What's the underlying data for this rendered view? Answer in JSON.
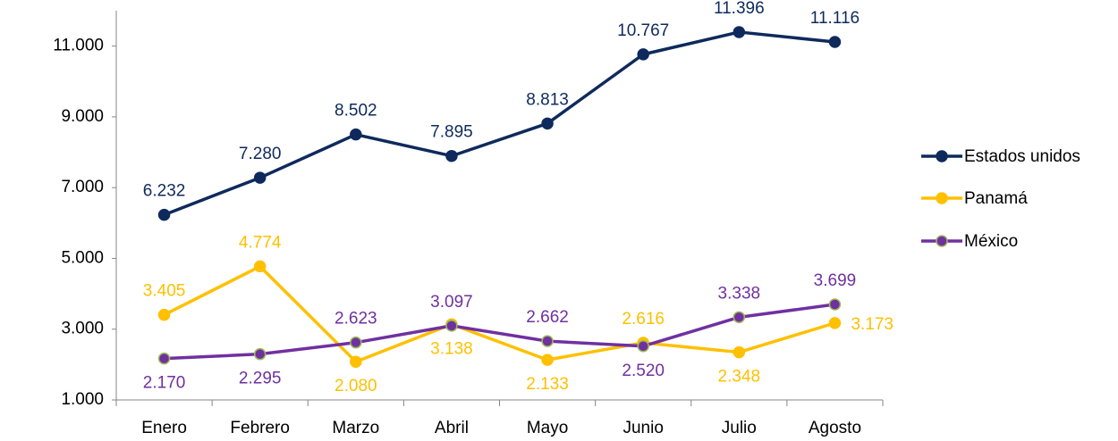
{
  "chart_data": {
    "type": "line",
    "categories": [
      "Enero",
      "Febrero",
      "Marzo",
      "Abril",
      "Mayo",
      "Junio",
      "Julio",
      "Agosto"
    ],
    "series": [
      {
        "name": "Estados unidos",
        "color": "#0e2a5c",
        "marker_fill": "#0e2a5c",
        "marker_stroke": "#0e2a5c",
        "values": [
          6232,
          7280,
          8502,
          7895,
          8813,
          10767,
          11396,
          11116
        ],
        "value_labels": [
          "6.232",
          "7.280",
          "8.502",
          "7.895",
          "8.813",
          "10.767",
          "11.396",
          "11.116"
        ]
      },
      {
        "name": "Panamá",
        "color": "#ffc000",
        "marker_fill": "#ffc000",
        "marker_stroke": "#ffc000",
        "values": [
          3405,
          4774,
          2080,
          3138,
          2133,
          2616,
          2348,
          3173
        ],
        "value_labels": [
          "3.405",
          "4.774",
          "2.080",
          "3.138",
          "2.133",
          "2.616",
          "2.348",
          "3.173"
        ]
      },
      {
        "name": "México",
        "color": "#7030a0",
        "marker_fill": "#7030a0",
        "marker_stroke": "#9bbb59",
        "values": [
          2170,
          2295,
          2623,
          3097,
          2662,
          2520,
          3338,
          3699
        ],
        "value_labels": [
          "2.170",
          "2.295",
          "2.623",
          "3.097",
          "2.662",
          "2.520",
          "3.338",
          "3.699"
        ]
      }
    ],
    "ylim": [
      1000,
      12000
    ],
    "yticks": [
      {
        "value": 1000,
        "label": "1.000"
      },
      {
        "value": 3000,
        "label": "3.000"
      },
      {
        "value": 5000,
        "label": "5.000"
      },
      {
        "value": 7000,
        "label": "7.000"
      },
      {
        "value": 9000,
        "label": "9.000"
      },
      {
        "value": 11000,
        "label": "11.000"
      }
    ],
    "grid": false,
    "legend": "right"
  }
}
